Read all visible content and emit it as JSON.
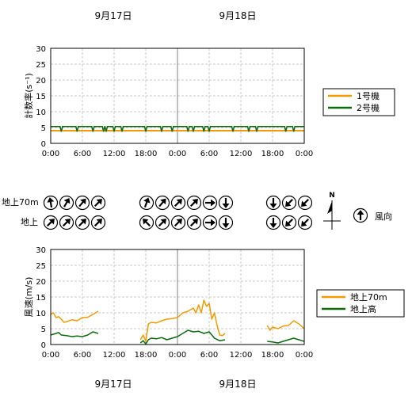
{
  "dates": {
    "day1": "9月17日",
    "day2": "9月18日"
  },
  "x_ticks": [
    "0:00",
    "6:00",
    "12:00",
    "18:00",
    "0:00",
    "6:00",
    "12:00",
    "18:00",
    "0:00"
  ],
  "colors": {
    "orange": "#f29b00",
    "green": "#0b6a0b",
    "grid": "#c8c8c8",
    "midline": "#808080"
  },
  "wind_rows": {
    "row1_label": "地上70m",
    "row2_label": "地上",
    "legend_label": "風向",
    "north_label": "N",
    "groups": [
      {
        "row1": [
          350,
          30,
          40,
          45
        ],
        "row2": [
          45,
          45,
          45,
          45
        ]
      },
      {
        "row1": [
          20,
          40,
          45,
          45,
          90,
          180
        ],
        "row2": [
          315,
          45,
          45,
          45,
          90,
          180
        ]
      },
      {
        "row1": [
          180,
          225,
          225
        ],
        "row2": [
          180,
          225,
          225
        ]
      }
    ],
    "legend_direction": 0
  },
  "chart_data": [
    {
      "type": "line",
      "ylabel": "計数率(s⁻¹)",
      "ylim": [
        0,
        30
      ],
      "yticks": [
        0,
        5,
        10,
        15,
        20,
        25,
        30
      ],
      "xlim_hours": [
        0,
        48
      ],
      "series": [
        {
          "name": "1号機",
          "color": "#f29b00",
          "x": [
            0,
            48
          ],
          "y": [
            4.0,
            4.0
          ]
        },
        {
          "name": "2号機",
          "color": "#0b6a0b",
          "base": 5.3,
          "dips": [
            2,
            5,
            8,
            10,
            10.5,
            12,
            13.5,
            18,
            21,
            23,
            26,
            27,
            29,
            30,
            34.5,
            37.5,
            39,
            44.5,
            46
          ]
        }
      ]
    },
    {
      "type": "line",
      "ylabel": "風速(m/s)",
      "ylim": [
        0,
        30
      ],
      "yticks": [
        0,
        5,
        10,
        15,
        20,
        25,
        30
      ],
      "xlim_hours": [
        0,
        48
      ],
      "series": [
        {
          "name": "地上70m",
          "color": "#f29b00",
          "segments": [
            {
              "x": [
                0,
                0.5,
                1,
                1.5,
                2,
                2.5,
                3,
                4,
                5,
                6,
                7,
                8,
                9
              ],
              "y": [
                9.5,
                10,
                8.5,
                8.8,
                8,
                7,
                7.2,
                7.8,
                7.5,
                8.5,
                8.6,
                9.5,
                10.5
              ]
            },
            {
              "x": [
                17,
                17.5,
                18,
                18.5,
                19,
                20,
                21,
                22,
                23,
                24,
                25,
                26,
                27,
                27.5,
                28,
                28.5,
                29,
                29.5,
                30,
                30.5,
                31,
                31.5,
                32,
                32.5,
                33
              ],
              "y": [
                1.5,
                3,
                1,
                6.5,
                7,
                6.8,
                7.5,
                8,
                8.2,
                8.5,
                10,
                10.5,
                11.5,
                10,
                12.5,
                10,
                14,
                12,
                13,
                8,
                10,
                6,
                3,
                2.8,
                3.5
              ]
            },
            {
              "x": [
                41,
                41.5,
                42,
                43,
                44,
                45,
                46,
                47,
                48
              ],
              "y": [
                6,
                4.5,
                5.5,
                5,
                5.8,
                6,
                7.5,
                6.5,
                5
              ]
            }
          ]
        },
        {
          "name": "地上高",
          "color": "#0b6a0b",
          "segments": [
            {
              "x": [
                0,
                1,
                1.5,
                2,
                3,
                4,
                5,
                6,
                7,
                8,
                9
              ],
              "y": [
                3,
                3.5,
                3.8,
                3,
                2.8,
                2.5,
                2.7,
                2.5,
                3,
                4,
                3.5
              ]
            },
            {
              "x": [
                17,
                17.5,
                18,
                18.5,
                19,
                20,
                21,
                22,
                23,
                24,
                25,
                26,
                27,
                28,
                29,
                30,
                31,
                32,
                33
              ],
              "y": [
                0.5,
                1.2,
                0.2,
                1.5,
                2,
                1.8,
                2.2,
                1.5,
                2,
                2.5,
                3.5,
                4.5,
                4,
                4.2,
                3.5,
                4,
                2,
                1.2,
                1.5
              ]
            },
            {
              "x": [
                41,
                42,
                43,
                44,
                45,
                46,
                47,
                48
              ],
              "y": [
                1,
                0.8,
                0.5,
                1,
                1.5,
                2,
                1.5,
                1
              ]
            }
          ]
        }
      ]
    }
  ]
}
